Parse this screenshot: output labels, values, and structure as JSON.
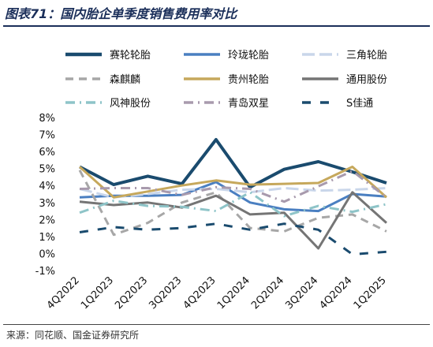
{
  "title": "图表71：国内胎企单季度销售费用率对比",
  "source": "来源：同花顺、国金证券研究所",
  "chart_data": {
    "type": "line",
    "categories": [
      "4Q2022",
      "1Q2023",
      "2Q2023",
      "3Q2023",
      "4Q2023",
      "1Q2024",
      "2Q2024",
      "3Q2024",
      "4Q2024",
      "1Q2025"
    ],
    "y_ticks": [
      "8%",
      "7%",
      "6%",
      "5%",
      "4%",
      "3%",
      "2%",
      "1%",
      "0%",
      "-1%"
    ],
    "ylim": [
      -1,
      8
    ],
    "legend_position": "top",
    "series": [
      {
        "name": "赛轮轮胎",
        "color": "#1a4b6e",
        "dash": "solid",
        "width": 4,
        "values": [
          5.1,
          4.05,
          4.55,
          4.1,
          6.7,
          3.9,
          4.95,
          5.4,
          4.8,
          4.15
        ]
      },
      {
        "name": "玲珑轮胎",
        "color": "#4a7fc1",
        "dash": "solid",
        "width": 3,
        "values": [
          3.3,
          3.4,
          3.4,
          3.45,
          4.2,
          3.0,
          2.6,
          2.5,
          3.5,
          3.35
        ]
      },
      {
        "name": "三角轮胎",
        "color": "#c9d6ea",
        "dash": "longdash",
        "width": 3,
        "values": [
          3.8,
          3.3,
          3.5,
          3.75,
          3.8,
          3.6,
          3.85,
          3.7,
          3.75,
          3.85
        ]
      },
      {
        "name": "森麒麟",
        "color": "#a7a7a7",
        "dash": "dash",
        "width": 3,
        "values": [
          4.9,
          1.1,
          1.8,
          3.0,
          3.6,
          1.5,
          1.3,
          2.1,
          2.3,
          1.3
        ]
      },
      {
        "name": "贵州轮胎",
        "color": "#c6a85c",
        "dash": "solid",
        "width": 3,
        "values": [
          5.1,
          3.3,
          3.65,
          4.0,
          4.3,
          4.05,
          4.1,
          4.15,
          5.1,
          3.3
        ]
      },
      {
        "name": "通用股份",
        "color": "#757575",
        "dash": "solid",
        "width": 3,
        "values": [
          3.05,
          2.85,
          3.0,
          2.7,
          3.4,
          2.3,
          2.4,
          0.3,
          3.6,
          1.8
        ]
      },
      {
        "name": "风神股份",
        "color": "#8ec4c8",
        "dash": "dashdot",
        "width": 3,
        "values": [
          2.4,
          3.1,
          2.8,
          2.75,
          2.5,
          3.6,
          2.2,
          2.8,
          2.45,
          2.9
        ]
      },
      {
        "name": "青岛双星",
        "color": "#a89aad",
        "dash": "dashdot",
        "width": 3,
        "values": [
          3.8,
          3.85,
          3.85,
          3.45,
          3.9,
          3.8,
          3.05,
          3.95,
          4.85,
          3.3
        ]
      },
      {
        "name": "S佳通",
        "color": "#1a4b6e",
        "dash": "bigdash",
        "width": 3,
        "values": [
          1.25,
          1.55,
          1.4,
          1.5,
          1.75,
          1.4,
          1.75,
          1.4,
          -0.05,
          0.1
        ]
      }
    ]
  }
}
